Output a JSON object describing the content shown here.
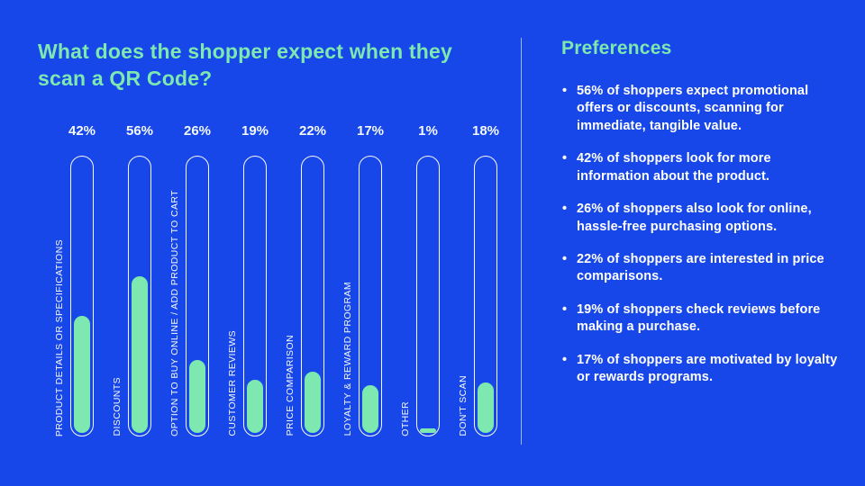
{
  "slide": {
    "background": "#1747E8",
    "accent_green": "#7DE8B0",
    "text_color": "#FFFFFF"
  },
  "chart_data": {
    "type": "bar",
    "title": "What does the shopper expect when they scan a QR Code?",
    "categories": [
      "PRODUCT DETAILS OR SPECIFICATIONS",
      "DISCOUNTS",
      "OPTION TO BUY ONLINE / ADD PRODUCT TO CART",
      "CUSTOMER REVIEWS",
      "PRICE COMPARISON",
      "LOYALTY & REWARD PROGRAM",
      "OTHER",
      "DON'T SCAN"
    ],
    "values": [
      42,
      56,
      26,
      19,
      22,
      17,
      1,
      18
    ],
    "value_labels": [
      "42%",
      "56%",
      "26%",
      "19%",
      "22%",
      "17%",
      "1%",
      "18%"
    ],
    "ylim": [
      0,
      100
    ],
    "orientation": "vertical",
    "value_label_position": "above",
    "category_label_rotation": 90,
    "bar_fill_color": "#7DE8B0",
    "bar_outline_color": "#F4F8FF",
    "grid": false,
    "legend": false
  },
  "preferences": {
    "title": "Preferences",
    "bullets": [
      "56% of shoppers expect promotional offers or discounts, scanning for immediate, tangible value.",
      "42% of shoppers look for more information about the product.",
      "26% of shoppers also look for online, hassle-free purchasing options.",
      "22% of shoppers are interested in price comparisons.",
      "19% of shoppers check reviews before making a purchase.",
      "17% of shoppers are motivated by loyalty or rewards programs."
    ]
  }
}
